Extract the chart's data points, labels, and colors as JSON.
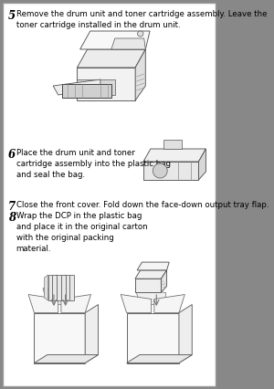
{
  "background_color": "#ffffff",
  "border_color": "#555555",
  "text_color": "#000000",
  "fig_width": 3.0,
  "fig_height": 4.26,
  "dpi": 100,
  "step5_num": "5",
  "step5_text": "Remove the drum unit and toner cartridge assembly. Leave the\ntoner cartridge installed in the drum unit.",
  "step6_num": "6",
  "step6_text": "Place the drum unit and toner\ncartridge assembly into the plastic bag\nand seal the bag.",
  "step7_num": "7",
  "step7_text": "Close the front cover. Fold down the face-down output tray flap.",
  "step8_num": "8",
  "step8_text": "Wrap the DCP in the plastic bag\nand place it in the original carton\nwith the original packing\nmaterial.",
  "font_size_num": 8.5,
  "font_size_text": 6.2,
  "outer_border": "#888888",
  "line_color": "#777777",
  "lw": 0.6
}
